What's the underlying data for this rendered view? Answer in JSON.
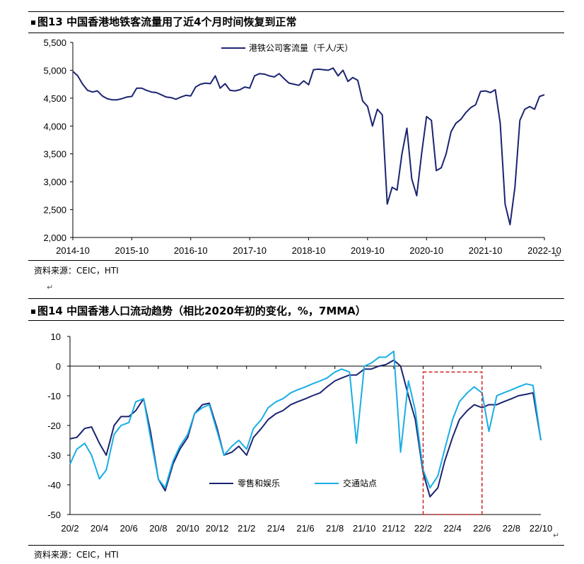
{
  "colors": {
    "navy": "#1b2470",
    "cyan": "#19aee6",
    "dashed_box": "#cc2222"
  },
  "return_mark": "↵",
  "charts_meta": [
    {
      "title": "图13 中国香港地铁客流量用了近4个月时间恢复到正常",
      "source": "资料来源：CEIC，HTI"
    },
    {
      "title": "图14 中国香港人口流动趋势（相比2020年初的变化，%，7MMA）",
      "source": "资料来源：CEIC，HTI"
    }
  ],
  "chart_data": [
    {
      "type": "line",
      "title": "图13 中国香港地铁客流量用了近4个月时间恢复到正常",
      "xlabel": "",
      "ylabel": "",
      "ylim": [
        2000,
        5500
      ],
      "yticks": [
        2000,
        2500,
        3000,
        3500,
        4000,
        4500,
        5000,
        5500
      ],
      "ytick_labels": [
        "2,000",
        "2,500",
        "3,000",
        "3,500",
        "4,000",
        "4,500",
        "5,000",
        "5,500"
      ],
      "xlim": [
        "2014-10",
        "2022-10"
      ],
      "xticks": [
        "2014-10",
        "2015-10",
        "2016-10",
        "2017-10",
        "2018-10",
        "2019-10",
        "2020-10",
        "2021-10",
        "2022-10"
      ],
      "legend_position": "top-center",
      "grid": false,
      "series": [
        {
          "name": "港铁公司客流量（千人/天）",
          "color": "#1b2470",
          "points": [
            [
              "2014-10",
              4980
            ],
            [
              "2014-11",
              4900
            ],
            [
              "2014-12",
              4750
            ],
            [
              "2015-01",
              4640
            ],
            [
              "2015-02",
              4610
            ],
            [
              "2015-03",
              4630
            ],
            [
              "2015-04",
              4540
            ],
            [
              "2015-05",
              4490
            ],
            [
              "2015-06",
              4470
            ],
            [
              "2015-07",
              4470
            ],
            [
              "2015-08",
              4490
            ],
            [
              "2015-09",
              4520
            ],
            [
              "2015-10",
              4530
            ],
            [
              "2015-11",
              4680
            ],
            [
              "2015-12",
              4680
            ],
            [
              "2016-01",
              4640
            ],
            [
              "2016-02",
              4610
            ],
            [
              "2016-03",
              4600
            ],
            [
              "2016-04",
              4560
            ],
            [
              "2016-05",
              4520
            ],
            [
              "2016-06",
              4510
            ],
            [
              "2016-07",
              4480
            ],
            [
              "2016-08",
              4520
            ],
            [
              "2016-09",
              4550
            ],
            [
              "2016-10",
              4540
            ],
            [
              "2016-11",
              4700
            ],
            [
              "2016-12",
              4750
            ],
            [
              "2017-01",
              4770
            ],
            [
              "2017-02",
              4760
            ],
            [
              "2017-03",
              4900
            ],
            [
              "2017-04",
              4680
            ],
            [
              "2017-05",
              4760
            ],
            [
              "2017-06",
              4640
            ],
            [
              "2017-07",
              4630
            ],
            [
              "2017-08",
              4650
            ],
            [
              "2017-09",
              4700
            ],
            [
              "2017-10",
              4680
            ],
            [
              "2017-11",
              4900
            ],
            [
              "2017-12",
              4940
            ],
            [
              "2018-01",
              4930
            ],
            [
              "2018-02",
              4900
            ],
            [
              "2018-03",
              4880
            ],
            [
              "2018-04",
              4940
            ],
            [
              "2018-05",
              4850
            ],
            [
              "2018-06",
              4770
            ],
            [
              "2018-07",
              4750
            ],
            [
              "2018-08",
              4730
            ],
            [
              "2018-09",
              4810
            ],
            [
              "2018-10",
              4740
            ],
            [
              "2018-11",
              5010
            ],
            [
              "2018-12",
              5020
            ],
            [
              "2019-01",
              5010
            ],
            [
              "2019-02",
              5000
            ],
            [
              "2019-03",
              5040
            ],
            [
              "2019-04",
              4900
            ],
            [
              "2019-05",
              5000
            ],
            [
              "2019-06",
              4800
            ],
            [
              "2019-07",
              4870
            ],
            [
              "2019-08",
              4820
            ],
            [
              "2019-09",
              4450
            ],
            [
              "2019-10",
              4350
            ],
            [
              "2019-11",
              4000
            ],
            [
              "2019-12",
              4300
            ],
            [
              "2020-01",
              4200
            ],
            [
              "2020-02",
              2600
            ],
            [
              "2020-03",
              2900
            ],
            [
              "2020-04",
              2850
            ],
            [
              "2020-05",
              3500
            ],
            [
              "2020-06",
              3960
            ],
            [
              "2020-07",
              3050
            ],
            [
              "2020-08",
              2750
            ],
            [
              "2020-09",
              3500
            ],
            [
              "2020-10",
              4170
            ],
            [
              "2020-11",
              4100
            ],
            [
              "2020-12",
              3200
            ],
            [
              "2021-01",
              3250
            ],
            [
              "2021-02",
              3500
            ],
            [
              "2021-03",
              3900
            ],
            [
              "2021-04",
              4050
            ],
            [
              "2021-05",
              4120
            ],
            [
              "2021-06",
              4240
            ],
            [
              "2021-07",
              4330
            ],
            [
              "2021-08",
              4380
            ],
            [
              "2021-09",
              4620
            ],
            [
              "2021-10",
              4630
            ],
            [
              "2021-11",
              4600
            ],
            [
              "2021-12",
              4650
            ],
            [
              "2022-01",
              4050
            ],
            [
              "2022-02",
              2600
            ],
            [
              "2022-03",
              2230
            ],
            [
              "2022-04",
              2900
            ],
            [
              "2022-05",
              4100
            ],
            [
              "2022-06",
              4300
            ],
            [
              "2022-07",
              4350
            ],
            [
              "2022-08",
              4300
            ],
            [
              "2022-09",
              4530
            ],
            [
              "2022-10",
              4560
            ]
          ]
        }
      ]
    },
    {
      "type": "line",
      "title": "图14 中国香港人口流动趋势（相比2020年初的变化，%，7MMA）",
      "xlabel": "",
      "ylabel": "",
      "ylim": [
        -50,
        10
      ],
      "yticks": [
        -50,
        -40,
        -30,
        -20,
        -10,
        0,
        10
      ],
      "xlim": [
        "2020-02",
        "2022-10"
      ],
      "xticks": [
        "20/2",
        "20/4",
        "20/6",
        "20/8",
        "20/10",
        "20/12",
        "21/2",
        "21/4",
        "21/6",
        "21/8",
        "21/10",
        "21/12",
        "22/2",
        "22/4",
        "22/6",
        "22/8",
        "22/10"
      ],
      "legend_position": "bottom-center",
      "grid": false,
      "annotation": "dashed box around 22/2 to 22/6",
      "highlight_range": {
        "x": [
          "2022-02",
          "2022-06"
        ],
        "y": [
          -50,
          -2
        ]
      },
      "series": [
        {
          "name": "零售和娱乐",
          "color": "#1b2470",
          "points": [
            [
              "2020-02",
              -24.5
            ],
            [
              "2020-02-15",
              -24
            ],
            [
              "2020-03",
              -21
            ],
            [
              "2020-03-15",
              -20.5
            ],
            [
              "2020-04",
              -26
            ],
            [
              "2020-04-15",
              -30
            ],
            [
              "2020-05",
              -20
            ],
            [
              "2020-05-15",
              -17
            ],
            [
              "2020-06",
              -17
            ],
            [
              "2020-06-15",
              -15
            ],
            [
              "2020-07",
              -11
            ],
            [
              "2020-07-15",
              -22
            ],
            [
              "2020-08",
              -38
            ],
            [
              "2020-08-15",
              -42
            ],
            [
              "2020-09",
              -33
            ],
            [
              "2020-09-15",
              -28
            ],
            [
              "2020-10",
              -24
            ],
            [
              "2020-10-15",
              -16
            ],
            [
              "2020-11",
              -13
            ],
            [
              "2020-11-15",
              -12.5
            ],
            [
              "2020-12",
              -21
            ],
            [
              "2020-12-15",
              -30
            ],
            [
              "2021-01",
              -29
            ],
            [
              "2021-01-15",
              -27
            ],
            [
              "2021-02",
              -30
            ],
            [
              "2021-02-15",
              -24
            ],
            [
              "2021-03",
              -21
            ],
            [
              "2021-03-15",
              -18
            ],
            [
              "2021-04",
              -16
            ],
            [
              "2021-04-15",
              -15
            ],
            [
              "2021-05",
              -13
            ],
            [
              "2021-05-15",
              -12
            ],
            [
              "2021-06",
              -11
            ],
            [
              "2021-06-15",
              -10
            ],
            [
              "2021-07",
              -9
            ],
            [
              "2021-07-15",
              -7
            ],
            [
              "2021-08",
              -5
            ],
            [
              "2021-08-15",
              -4
            ],
            [
              "2021-09",
              -3
            ],
            [
              "2021-09-15",
              -3
            ],
            [
              "2021-10",
              -1
            ],
            [
              "2021-10-15",
              -1
            ],
            [
              "2021-11",
              0
            ],
            [
              "2021-11-15",
              0.5
            ],
            [
              "2021-12",
              2
            ],
            [
              "2021-12-15",
              0
            ],
            [
              "2022-01",
              -10
            ],
            [
              "2022-01-15",
              -18
            ],
            [
              "2022-02",
              -36
            ],
            [
              "2022-02-15",
              -44
            ],
            [
              "2022-03",
              -41
            ],
            [
              "2022-03-15",
              -32
            ],
            [
              "2022-04",
              -24
            ],
            [
              "2022-04-15",
              -18
            ],
            [
              "2022-05",
              -15
            ],
            [
              "2022-05-15",
              -13
            ],
            [
              "2022-06",
              -14
            ],
            [
              "2022-06-15",
              -13
            ],
            [
              "2022-07",
              -13
            ],
            [
              "2022-07-15",
              -12
            ],
            [
              "2022-08",
              -11
            ],
            [
              "2022-08-15",
              -10
            ],
            [
              "2022-09",
              -9.5
            ],
            [
              "2022-09-15",
              -9
            ],
            [
              "2022-10",
              -25
            ]
          ]
        },
        {
          "name": "交通站点",
          "color": "#19aee6",
          "points": [
            [
              "2020-02",
              -33
            ],
            [
              "2020-02-15",
              -28
            ],
            [
              "2020-03",
              -26
            ],
            [
              "2020-03-15",
              -30
            ],
            [
              "2020-04",
              -38
            ],
            [
              "2020-04-15",
              -35
            ],
            [
              "2020-05",
              -23
            ],
            [
              "2020-05-15",
              -20
            ],
            [
              "2020-06",
              -19
            ],
            [
              "2020-06-15",
              -12
            ],
            [
              "2020-07",
              -11
            ],
            [
              "2020-07-15",
              -24
            ],
            [
              "2020-08",
              -38
            ],
            [
              "2020-08-15",
              -41
            ],
            [
              "2020-09",
              -32
            ],
            [
              "2020-09-15",
              -27
            ],
            [
              "2020-10",
              -23
            ],
            [
              "2020-10-15",
              -16
            ],
            [
              "2020-11",
              -14
            ],
            [
              "2020-11-15",
              -13
            ],
            [
              "2020-12",
              -22
            ],
            [
              "2020-12-15",
              -30
            ],
            [
              "2021-01",
              -27
            ],
            [
              "2021-01-15",
              -25
            ],
            [
              "2021-02",
              -28
            ],
            [
              "2021-02-15",
              -21
            ],
            [
              "2021-03",
              -18
            ],
            [
              "2021-03-15",
              -14
            ],
            [
              "2021-04",
              -12
            ],
            [
              "2021-04-15",
              -11
            ],
            [
              "2021-05",
              -9
            ],
            [
              "2021-05-15",
              -8
            ],
            [
              "2021-06",
              -7
            ],
            [
              "2021-06-15",
              -6
            ],
            [
              "2021-07",
              -5
            ],
            [
              "2021-07-15",
              -4
            ],
            [
              "2021-08",
              -2
            ],
            [
              "2021-08-15",
              -1
            ],
            [
              "2021-09",
              -2
            ],
            [
              "2021-09-15",
              -26
            ],
            [
              "2021-10",
              0
            ],
            [
              "2021-10-15",
              1
            ],
            [
              "2021-11",
              3
            ],
            [
              "2021-11-15",
              3
            ],
            [
              "2021-12",
              5
            ],
            [
              "2021-12-15",
              -29
            ],
            [
              "2022-01",
              -5
            ],
            [
              "2022-01-15",
              -15
            ],
            [
              "2022-02",
              -35
            ],
            [
              "2022-02-15",
              -41
            ],
            [
              "2022-03",
              -37
            ],
            [
              "2022-03-15",
              -28
            ],
            [
              "2022-04",
              -18
            ],
            [
              "2022-04-15",
              -12
            ],
            [
              "2022-05",
              -9
            ],
            [
              "2022-05-15",
              -7
            ],
            [
              "2022-06",
              -9
            ],
            [
              "2022-06-15",
              -22
            ],
            [
              "2022-07",
              -10
            ],
            [
              "2022-07-15",
              -9
            ],
            [
              "2022-08",
              -8
            ],
            [
              "2022-08-15",
              -7
            ],
            [
              "2022-09",
              -6
            ],
            [
              "2022-09-15",
              -6.5
            ],
            [
              "2022-10",
              -25
            ]
          ]
        }
      ]
    }
  ]
}
